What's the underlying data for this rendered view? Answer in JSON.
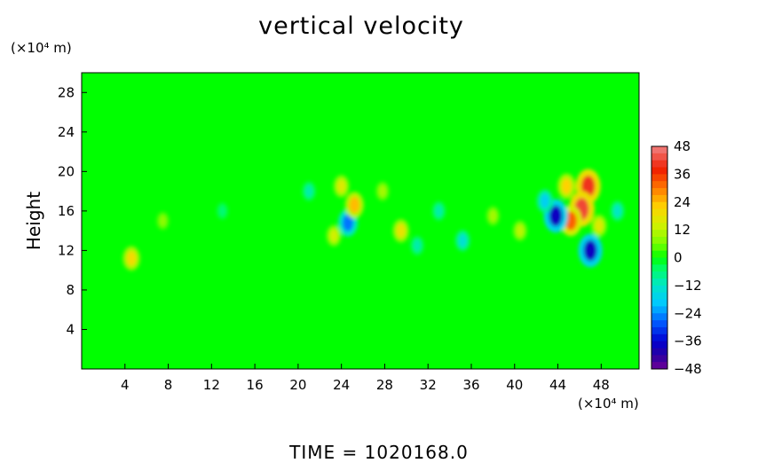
{
  "chart_data": {
    "type": "heatmap",
    "title": "vertical velocity",
    "xlabel": "",
    "ylabel": "Height",
    "x_units": "(×10⁴ m)",
    "y_units": "(×10⁴ m)",
    "footer": "TIME  =  1020168.0",
    "xlim": [
      0,
      51.5
    ],
    "ylim": [
      0,
      30
    ],
    "x_ticks": [
      4,
      8,
      12,
      16,
      20,
      24,
      28,
      32,
      36,
      40,
      44,
      48
    ],
    "y_ticks": [
      4,
      8,
      12,
      16,
      20,
      24,
      28
    ],
    "x_tick_labels": [
      "4",
      "8",
      "12",
      "16",
      "20",
      "24",
      "28",
      "32",
      "36",
      "40",
      "44",
      "48"
    ],
    "y_tick_labels": [
      "4",
      "8",
      "12",
      "16",
      "20",
      "24",
      "28"
    ],
    "colorbar": {
      "min": -48,
      "max": 48,
      "labels": [
        "48",
        "36",
        "24",
        "12",
        "0",
        "−12",
        "−24",
        "−36",
        "−48"
      ],
      "values": [
        48,
        36,
        24,
        12,
        0,
        -12,
        -24,
        -36,
        -48
      ]
    },
    "background_value": 0,
    "features": [
      {
        "x": 46.8,
        "y": 18.5,
        "value": 40
      },
      {
        "x": 46.2,
        "y": 16.2,
        "value": 42
      },
      {
        "x": 45.2,
        "y": 15.0,
        "value": 32
      },
      {
        "x": 44.8,
        "y": 18.5,
        "value": 22
      },
      {
        "x": 43.8,
        "y": 15.5,
        "value": -38
      },
      {
        "x": 47.0,
        "y": 12.0,
        "value": -38
      },
      {
        "x": 42.8,
        "y": 17.0,
        "value": -18
      },
      {
        "x": 47.8,
        "y": 14.5,
        "value": 16
      },
      {
        "x": 24.6,
        "y": 14.8,
        "value": -26
      },
      {
        "x": 25.2,
        "y": 16.6,
        "value": 24
      },
      {
        "x": 24.0,
        "y": 18.5,
        "value": 16
      },
      {
        "x": 23.3,
        "y": 13.5,
        "value": 14
      },
      {
        "x": 29.5,
        "y": 14.0,
        "value": 18
      },
      {
        "x": 27.8,
        "y": 18.0,
        "value": 10
      },
      {
        "x": 4.6,
        "y": 11.2,
        "value": 20
      },
      {
        "x": 35.2,
        "y": 13.0,
        "value": -14
      },
      {
        "x": 33.0,
        "y": 16.0,
        "value": -10
      },
      {
        "x": 40.5,
        "y": 14.0,
        "value": 12
      },
      {
        "x": 38.0,
        "y": 15.5,
        "value": 10
      },
      {
        "x": 31.0,
        "y": 12.5,
        "value": -10
      },
      {
        "x": 21.0,
        "y": 18.0,
        "value": -10
      },
      {
        "x": 7.5,
        "y": 15.0,
        "value": 8
      },
      {
        "x": 13.0,
        "y": 16.0,
        "value": -6
      },
      {
        "x": 49.5,
        "y": 16.0,
        "value": -12
      }
    ]
  }
}
